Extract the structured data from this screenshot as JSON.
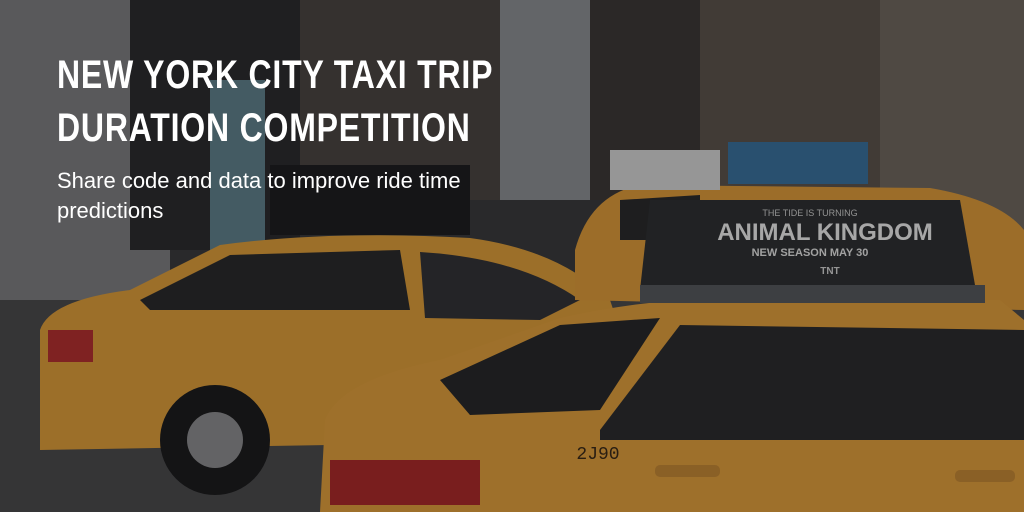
{
  "banner": {
    "title_lines": [
      "NEW YORK CITY TAXI TRIP",
      "DURATION COMPETITION"
    ],
    "subtitle": "Share code and data to improve ride time predictions"
  },
  "photo_text": {
    "ad_tagline": "THE TIDE IS TURNING",
    "ad_title": "ANIMAL KINGDOM",
    "ad_subtitle": "NEW SEASON MAY 30",
    "ad_network": "TNT",
    "cab_number": "2J90"
  }
}
